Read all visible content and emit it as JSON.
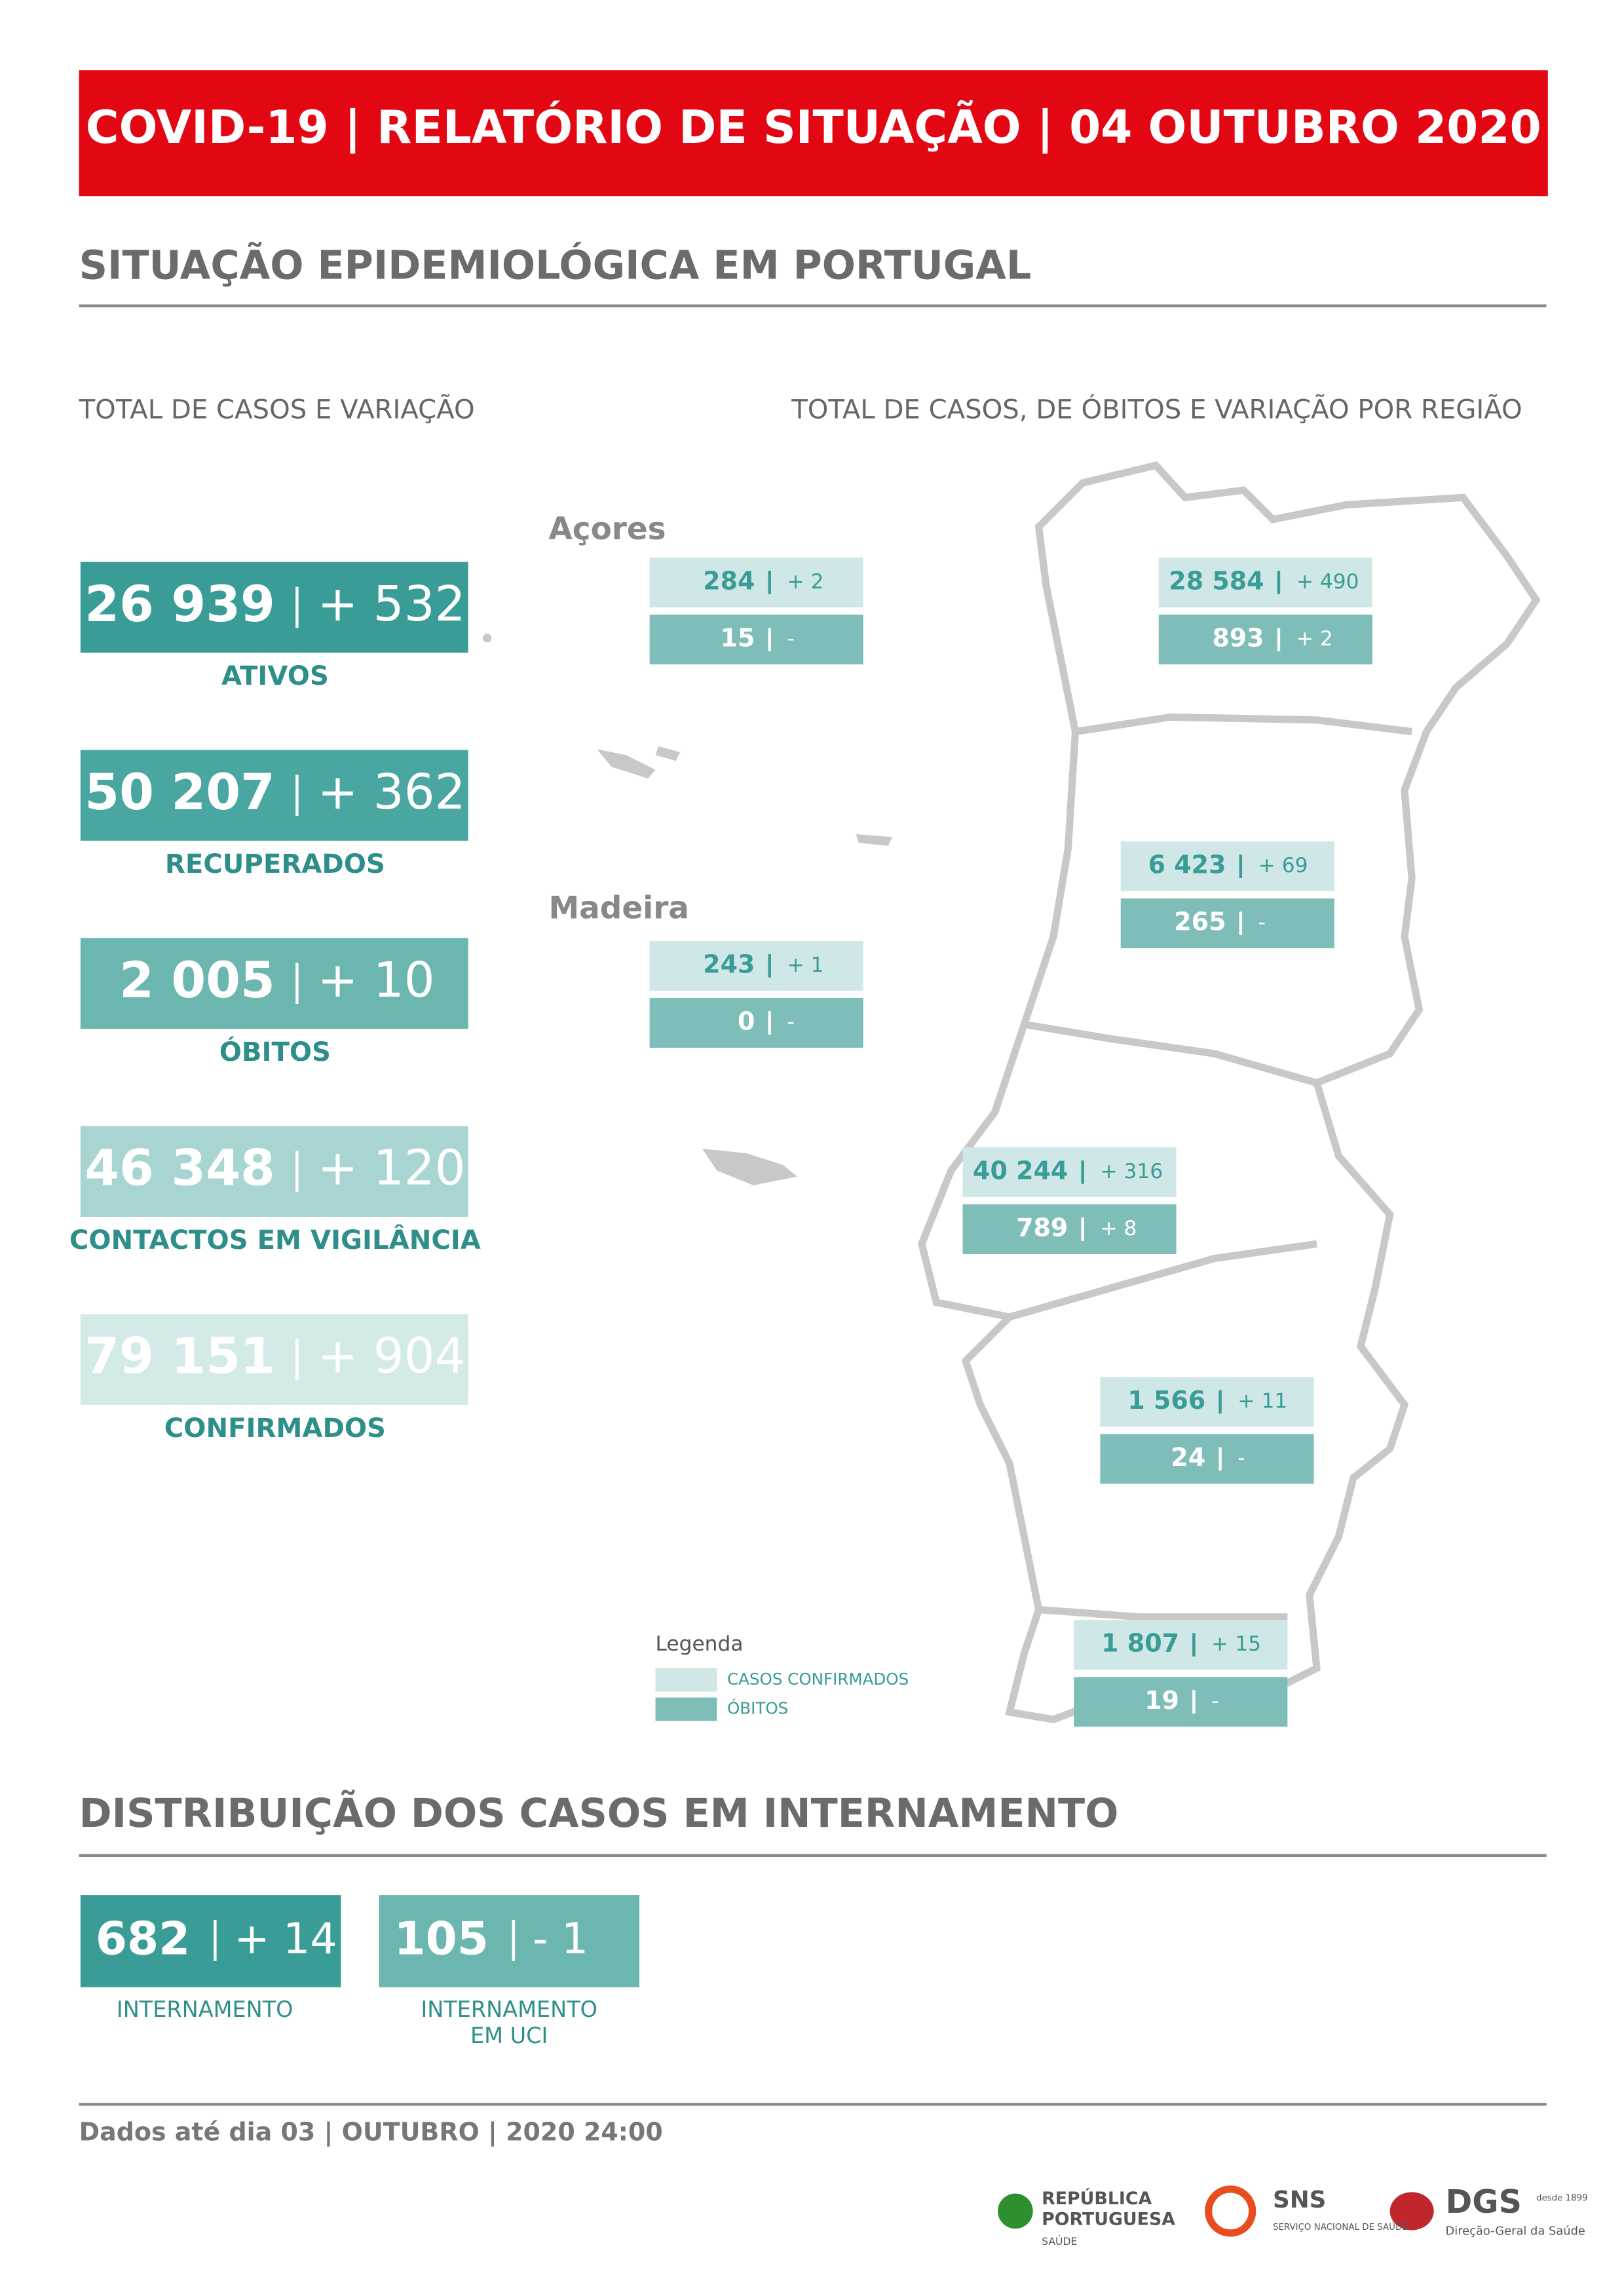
{
  "header": {
    "title": "COVID-19 | RELATÓRIO DE SITUAÇÃO | 04 OUTUBRO 2020"
  },
  "section1": {
    "title": "SITUAÇÃO EPIDEMIOLÓGICA EM PORTUGAL",
    "left_subtitle": "TOTAL DE CASOS E VARIAÇÃO",
    "right_subtitle": "TOTAL DE CASOS, DE ÓBITOS  E VARIAÇÃO POR REGIÃO"
  },
  "totals": [
    {
      "value": "26 939",
      "change": "+ 532",
      "label": "ATIVOS"
    },
    {
      "value": "50 207",
      "change": "+ 362",
      "label": "RECUPERADOS"
    },
    {
      "value": "2 005",
      "change": "+ 10",
      "label": "ÓBITOS"
    },
    {
      "value": "46 348",
      "change": "+ 120",
      "label": "CONTACTOS EM VIGILÂNCIA"
    },
    {
      "value": "79 151",
      "change": "+ 904",
      "label": "CONFIRMADOS"
    }
  ],
  "islands": [
    {
      "name": "Açores",
      "cases": "284",
      "cases_change": "+ 2",
      "deaths": "15",
      "deaths_change": "-"
    },
    {
      "name": "Madeira",
      "cases": "243",
      "cases_change": "+ 1",
      "deaths": "0",
      "deaths_change": "-"
    }
  ],
  "mainland": [
    {
      "cases": "28 584",
      "cases_change": "+ 490",
      "deaths": "893",
      "deaths_change": "+ 2"
    },
    {
      "cases": "6 423",
      "cases_change": "+ 69",
      "deaths": "265",
      "deaths_change": "-"
    },
    {
      "cases": "40 244",
      "cases_change": "+ 316",
      "deaths": "789",
      "deaths_change": "+ 8"
    },
    {
      "cases": "1 566",
      "cases_change": "+ 11",
      "deaths": "24",
      "deaths_change": "-"
    },
    {
      "cases": "1 807",
      "cases_change": "+ 15",
      "deaths": "19",
      "deaths_change": "-"
    }
  ],
  "legend": {
    "title": "Legenda",
    "cases": "CASOS CONFIRMADOS",
    "deaths": "ÓBITOS"
  },
  "hospital": {
    "title": "DISTRIBUIÇÃO DOS CASOS EM INTERNAMENTO",
    "items": [
      {
        "value": "682",
        "change": "+ 14",
        "label": [
          "INTERNAMENTO"
        ]
      },
      {
        "value": "105",
        "change": "- 1",
        "label": [
          "INTERNAMENTO",
          "EM UCI"
        ]
      }
    ]
  },
  "footer": {
    "note": "Dados até dia 03 | OUTUBRO | 2020 24:00",
    "logos": [
      "REPÚBLICA",
      "PORTUGUESA",
      "SAÚDE",
      "SNS",
      "SERVIÇO NACIONAL DE SAÚDE",
      "DGS",
      "desde 1899",
      "Direção-Geral da Saúde"
    ]
  }
}
